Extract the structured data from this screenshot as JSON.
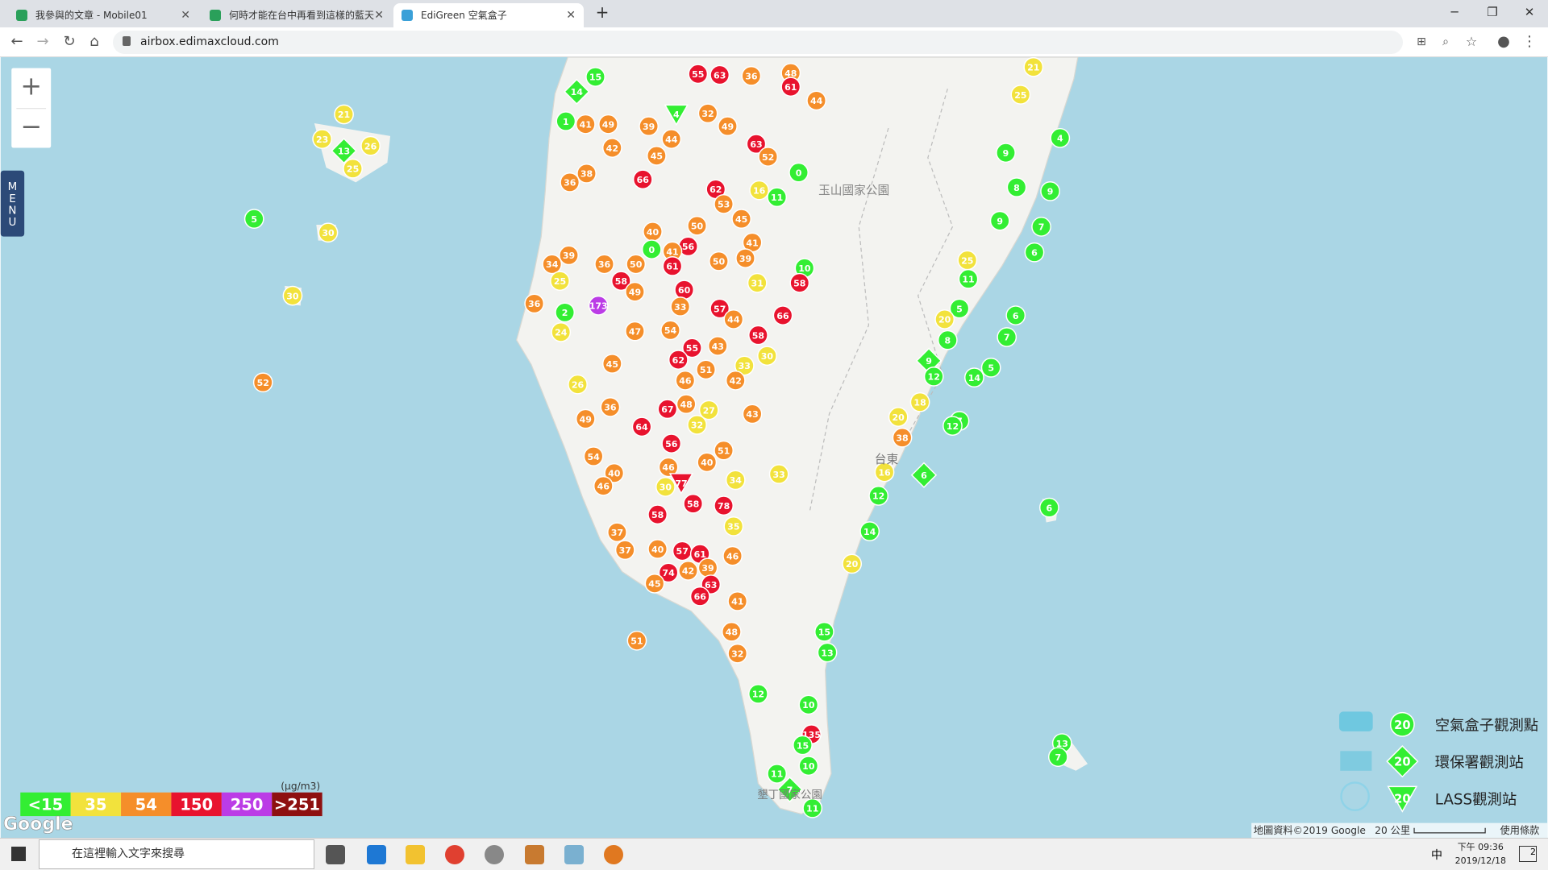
{
  "browser": {
    "tabs": [
      "我參與的文章 - Mobile01",
      "何時才能在台中再看到這樣的藍天",
      "EdiGreen 空氣盒子"
    ],
    "url": "airbox.edimaxcloud.com"
  },
  "map": {
    "zoom_in": "+",
    "zoom_out": "−",
    "menu": [
      "M",
      "E",
      "N",
      "U"
    ],
    "places": [
      "玉山國家公園",
      "台東",
      "墾丁國家公園"
    ],
    "google": "Google",
    "attribution": "地圖資料©2019 Google",
    "scale": "20 公里",
    "terms": "使用條款",
    "legend": {
      "unit": "(μg/m3)",
      "items": [
        {
          "label": "<15",
          "color": "#33ee33"
        },
        {
          "label": "35",
          "color": "#f2e23c"
        },
        {
          "label": "54",
          "color": "#f58e2a"
        },
        {
          "label": "150",
          "color": "#e8132e"
        },
        {
          "label": "250",
          "color": "#bb3ce6"
        },
        {
          "label": ">251",
          "color": "#8e1010"
        }
      ]
    },
    "station_legend": {
      "sample": "20",
      "items": [
        "空氣盒子觀測點",
        "環保署觀測站",
        "LASS觀測站"
      ]
    },
    "markers": {
      "values": [
        21,
        23,
        26,
        25,
        13,
        5,
        30,
        30,
        52,
        15,
        14,
        1,
        41,
        49,
        39,
        4,
        32,
        49,
        55,
        63,
        36,
        48,
        61,
        44,
        63,
        52,
        0,
        11,
        44,
        45,
        42,
        36,
        38,
        66,
        62,
        53,
        16,
        45,
        41,
        50,
        40,
        0,
        56,
        41,
        61,
        50,
        58,
        49,
        36,
        39,
        34,
        25,
        36,
        2,
        173,
        60,
        33,
        57,
        44,
        58,
        66,
        39,
        50,
        31,
        10,
        58,
        54,
        47,
        55,
        43,
        30,
        33,
        42,
        62,
        51,
        46,
        45,
        26,
        24,
        49,
        36,
        64,
        67,
        48,
        32,
        27,
        43,
        56,
        51,
        40,
        46,
        34,
        33,
        30,
        77,
        78,
        58,
        58,
        35,
        57,
        61,
        46,
        40,
        39,
        37,
        37,
        74,
        42,
        63,
        45,
        66,
        41,
        48,
        32,
        51,
        54,
        40,
        46,
        12,
        10,
        135,
        15,
        10,
        11,
        7,
        11,
        15,
        13,
        20,
        14,
        21,
        25,
        4,
        9,
        8,
        9,
        9,
        7,
        6,
        25,
        11,
        5,
        20,
        6,
        7,
        8,
        9,
        12,
        5,
        14,
        18,
        20,
        38,
        7,
        12,
        16,
        6,
        12,
        6,
        13,
        7
      ],
      "levels": [
        1,
        1,
        1,
        1,
        0,
        0,
        1,
        1,
        2,
        0,
        0,
        0,
        2,
        2,
        2,
        0,
        2,
        2,
        3,
        3,
        2,
        2,
        3,
        2,
        3,
        2,
        0,
        0,
        2,
        2,
        2,
        2,
        2,
        3,
        3,
        2,
        1,
        2,
        2,
        2,
        2,
        0,
        3,
        2,
        3,
        2,
        3,
        2,
        2,
        2,
        2,
        1,
        2,
        0,
        4,
        3,
        2,
        3,
        2,
        3,
        3,
        2,
        2,
        1,
        0,
        3,
        2,
        2,
        3,
        2,
        1,
        1,
        2,
        3,
        2,
        2,
        2,
        1,
        1,
        2,
        2,
        3,
        3,
        2,
        1,
        1,
        2,
        3,
        2,
        2,
        2,
        1,
        1,
        1,
        3,
        3,
        3,
        3,
        1,
        3,
        3,
        2,
        2,
        2,
        2,
        2,
        3,
        2,
        3,
        2,
        3,
        2,
        2,
        2,
        2,
        2,
        2,
        2,
        0,
        0,
        3,
        0,
        0,
        0,
        0,
        0,
        0,
        0,
        1,
        0,
        1,
        1,
        0,
        0,
        0,
        0,
        0,
        0,
        0,
        1,
        0,
        0,
        1,
        0,
        0,
        0,
        0,
        0,
        0,
        0,
        1,
        1,
        2,
        0,
        0,
        1,
        0,
        0,
        0,
        0,
        0
      ]
    }
  },
  "taskbar": {
    "search": "在這裡輸入文字來搜尋",
    "ime": "中",
    "time": "下午 09:36",
    "date": "2019/12/18",
    "notifications": "2"
  }
}
